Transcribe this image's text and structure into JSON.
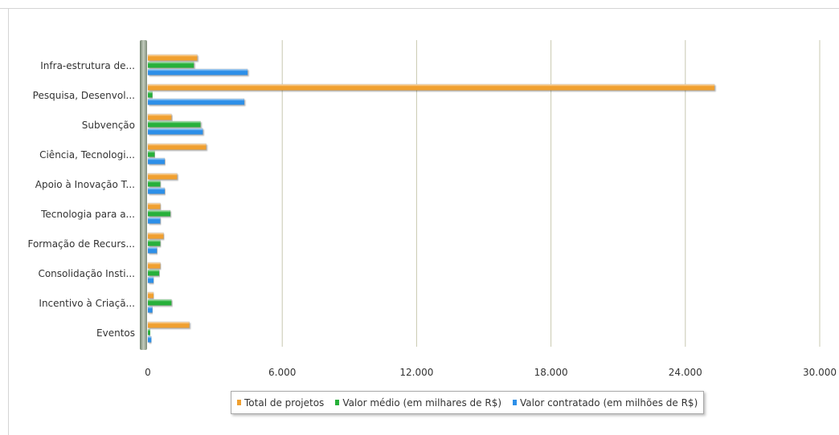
{
  "chart_data": {
    "type": "bar",
    "orientation": "horizontal",
    "categories": [
      "Infra-estrutura de...",
      "Pesquisa, Desenvol...",
      "Subvenção",
      "Ciência, Tecnologi...",
      "Apoio à Inovação T...",
      "Tecnologia para a...",
      "Formação de Recurs...",
      "Consolidação Insti...",
      "Incentivo à Criaçã...",
      "Eventos"
    ],
    "series": [
      {
        "name": "Total de projetos",
        "color": "#f0a030",
        "values": [
          2200,
          25300,
          1050,
          2600,
          1300,
          550,
          700,
          550,
          250,
          1850
        ]
      },
      {
        "name": "Valor médio (em milhares de R$)",
        "color": "#27b03a",
        "values": [
          2050,
          200,
          2350,
          300,
          550,
          1000,
          550,
          500,
          1050,
          100
        ]
      },
      {
        "name": "Valor contratado (em milhões de R$)",
        "color": "#2d8fe8",
        "values": [
          4450,
          4300,
          2450,
          750,
          750,
          550,
          400,
          250,
          200,
          150
        ]
      }
    ],
    "x_ticks": [
      "0",
      "6.000",
      "12.000",
      "18.000",
      "24.000",
      "30.000"
    ],
    "xlim": [
      0,
      30000
    ],
    "grid": true,
    "legend_position": "bottom"
  }
}
